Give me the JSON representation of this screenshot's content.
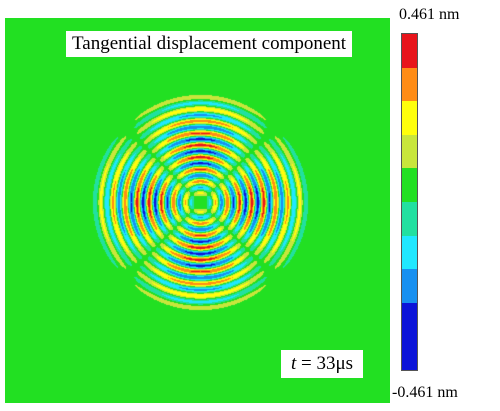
{
  "chart_data": {
    "type": "heatmap",
    "title": "Tangential displacement component",
    "time_annotation": {
      "symbol": "t",
      "text": " = 33μs"
    },
    "colorbar": {
      "max_label": "0.461 nm",
      "min_label": "-0.461 nm",
      "max_value": 0.461,
      "min_value": -0.461,
      "levels": 10,
      "colors": [
        "#e8141b",
        "#ff8c16",
        "#ffff0c",
        "#c8e63c",
        "#22e022",
        "#22e0a0",
        "#20e8ff",
        "#1890f0",
        "#0c14d8",
        "#0c14d8"
      ]
    },
    "pattern": "four-lobed circular wavefronts centred in the field"
  }
}
